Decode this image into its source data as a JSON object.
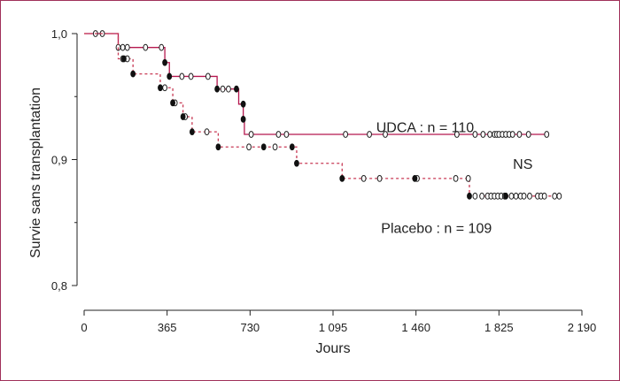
{
  "chart_data": {
    "type": "line",
    "xlabel": "Jours",
    "ylabel": "Survie sans transplantation",
    "xlim": [
      0,
      2190
    ],
    "ylim": [
      0.8,
      1.0
    ],
    "x_ticks": [
      0,
      365,
      730,
      1095,
      1460,
      1825,
      2190
    ],
    "x_tick_labels": [
      "0",
      "365",
      "730",
      "1 095",
      "1 460",
      "1 825",
      "2 190"
    ],
    "y_ticks": [
      0.8,
      0.9,
      1.0
    ],
    "y_tick_labels": [
      "0,8",
      "0,9",
      "1,0"
    ],
    "annotations": [
      {
        "text": "UDCA : n = 110",
        "x": 1500,
        "y": 0.926
      },
      {
        "text": "NS",
        "x": 1930,
        "y": 0.897
      },
      {
        "text": "Placebo : n = 109",
        "x": 1550,
        "y": 0.846
      }
    ],
    "series": [
      {
        "name": "UDCA",
        "color": "#b5184f",
        "dash": "",
        "steps": [
          [
            0,
            1.0
          ],
          [
            150,
            0.989
          ],
          [
            355,
            0.977
          ],
          [
            375,
            0.966
          ],
          [
            585,
            0.956
          ],
          [
            680,
            0.944
          ],
          [
            700,
            0.932
          ],
          [
            705,
            0.92
          ],
          [
            2040,
            0.92
          ]
        ],
        "events": [
          [
            355,
            0.977
          ],
          [
            375,
            0.966
          ],
          [
            585,
            0.956
          ],
          [
            670,
            0.956
          ],
          [
            700,
            0.944
          ],
          [
            700,
            0.932
          ]
        ],
        "censored": [
          [
            50,
            1.0
          ],
          [
            80,
            1.0
          ],
          [
            150,
            0.989
          ],
          [
            170,
            0.989
          ],
          [
            190,
            0.989
          ],
          [
            270,
            0.989
          ],
          [
            340,
            0.989
          ],
          [
            430,
            0.966
          ],
          [
            470,
            0.966
          ],
          [
            545,
            0.966
          ],
          [
            610,
            0.956
          ],
          [
            635,
            0.956
          ],
          [
            735,
            0.92
          ],
          [
            855,
            0.92
          ],
          [
            890,
            0.92
          ],
          [
            1150,
            0.92
          ],
          [
            1255,
            0.92
          ],
          [
            1325,
            0.92
          ],
          [
            1640,
            0.92
          ],
          [
            1720,
            0.92
          ],
          [
            1755,
            0.92
          ],
          [
            1785,
            0.92
          ],
          [
            1805,
            0.92
          ],
          [
            1815,
            0.92
          ],
          [
            1825,
            0.92
          ],
          [
            1840,
            0.92
          ],
          [
            1855,
            0.92
          ],
          [
            1870,
            0.92
          ],
          [
            1885,
            0.92
          ],
          [
            1915,
            0.92
          ],
          [
            1955,
            0.92
          ],
          [
            2035,
            0.92
          ]
        ]
      },
      {
        "name": "Placebo",
        "color": "#c83a55",
        "dash": "3,3",
        "steps": [
          [
            0,
            1.0
          ],
          [
            150,
            0.98
          ],
          [
            215,
            0.968
          ],
          [
            335,
            0.957
          ],
          [
            390,
            0.945
          ],
          [
            435,
            0.934
          ],
          [
            475,
            0.922
          ],
          [
            590,
            0.91
          ],
          [
            935,
            0.897
          ],
          [
            1135,
            0.885
          ],
          [
            1695,
            0.871
          ],
          [
            2100,
            0.871
          ]
        ],
        "events": [
          [
            175,
            0.98
          ],
          [
            215,
            0.968
          ],
          [
            335,
            0.957
          ],
          [
            390,
            0.945
          ],
          [
            435,
            0.934
          ],
          [
            475,
            0.922
          ],
          [
            590,
            0.91
          ],
          [
            790,
            0.91
          ],
          [
            915,
            0.91
          ],
          [
            935,
            0.897
          ],
          [
            1135,
            0.885
          ],
          [
            1455,
            0.885
          ],
          [
            1695,
            0.871
          ],
          [
            1855,
            0.871
          ]
        ],
        "censored": [
          [
            170,
            0.98
          ],
          [
            190,
            0.98
          ],
          [
            355,
            0.957
          ],
          [
            400,
            0.945
          ],
          [
            445,
            0.934
          ],
          [
            540,
            0.922
          ],
          [
            725,
            0.91
          ],
          [
            840,
            0.91
          ],
          [
            1230,
            0.885
          ],
          [
            1300,
            0.885
          ],
          [
            1465,
            0.885
          ],
          [
            1635,
            0.885
          ],
          [
            1690,
            0.885
          ],
          [
            1720,
            0.871
          ],
          [
            1750,
            0.871
          ],
          [
            1775,
            0.871
          ],
          [
            1790,
            0.871
          ],
          [
            1805,
            0.871
          ],
          [
            1820,
            0.871
          ],
          [
            1835,
            0.871
          ],
          [
            1850,
            0.871
          ],
          [
            1880,
            0.871
          ],
          [
            1900,
            0.871
          ],
          [
            1920,
            0.871
          ],
          [
            1935,
            0.871
          ],
          [
            1960,
            0.871
          ],
          [
            1995,
            0.871
          ],
          [
            2010,
            0.871
          ],
          [
            2025,
            0.871
          ],
          [
            2070,
            0.871
          ],
          [
            2090,
            0.871
          ]
        ]
      }
    ]
  }
}
